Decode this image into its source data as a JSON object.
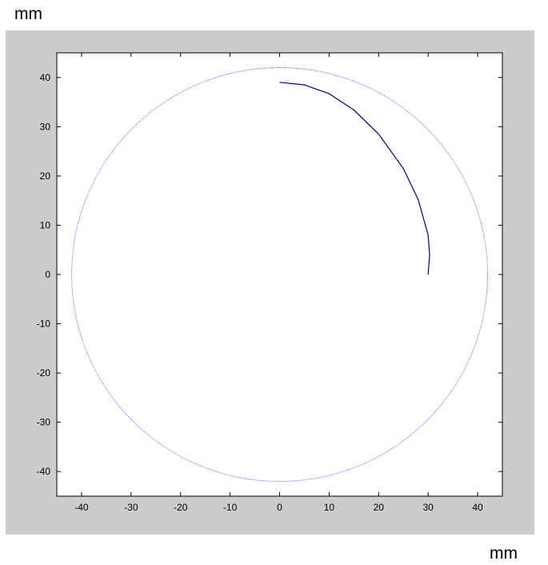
{
  "labels": {
    "y_unit": "mm",
    "x_unit": "mm"
  },
  "colors": {
    "figure_bg": "#cccccc",
    "axes_bg": "#ffffff",
    "circle": "#5a73ff",
    "arc": "#00008b"
  },
  "chart_data": {
    "type": "line",
    "title": "",
    "xlabel": "mm",
    "ylabel": "mm",
    "xlim": [
      -45,
      45
    ],
    "ylim": [
      -45,
      45
    ],
    "xticks": [
      -40,
      -30,
      -20,
      -10,
      0,
      10,
      20,
      30,
      40
    ],
    "yticks": [
      -40,
      -30,
      -20,
      -10,
      0,
      10,
      20,
      30,
      40
    ],
    "grid": false,
    "legend": "none",
    "series": [
      {
        "kind": "circle",
        "center": [
          0,
          0
        ],
        "radius": 42,
        "color": "#5a73ff"
      },
      {
        "kind": "arc",
        "x": [
          0,
          5,
          10,
          15,
          20,
          25,
          28,
          30,
          30.3,
          30
        ],
        "y": [
          39,
          38.5,
          36.7,
          33.4,
          28.5,
          21.5,
          15.2,
          8,
          4,
          0
        ],
        "color": "#00008b"
      }
    ]
  }
}
